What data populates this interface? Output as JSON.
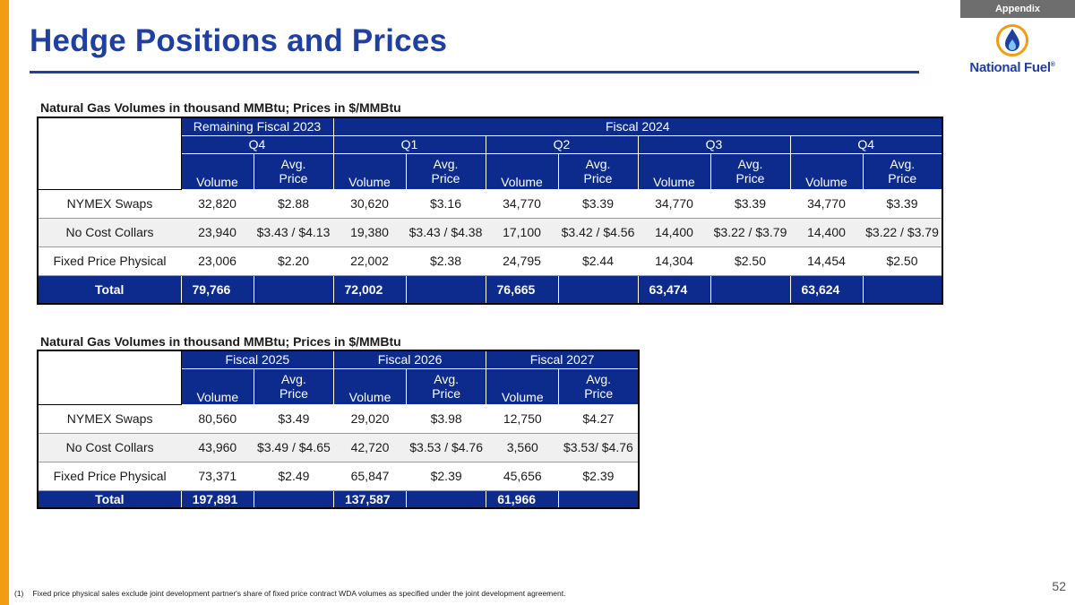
{
  "header": {
    "tag": "Appendix",
    "title": "Hedge Positions and Prices",
    "logo_text": "National Fuel",
    "logo_mark": "®"
  },
  "colors": {
    "navy": "#0d2b8c",
    "title_blue": "#1f3fa1",
    "orange": "#f39c12"
  },
  "table1": {
    "caption": "Natural Gas Volumes in thousand MMBtu; Prices in $/MMBtu",
    "groups": [
      "Remaining Fiscal 2023",
      "Fiscal 2024"
    ],
    "quarters": [
      "Q4",
      "Q1",
      "Q2",
      "Q3",
      "Q4"
    ],
    "col_volume": "Volume",
    "col_avg": "Avg.",
    "col_price": "Price",
    "rows": [
      {
        "label": "NYMEX Swaps",
        "cells": [
          "32,820",
          "$2.88",
          "30,620",
          "$3.16",
          "34,770",
          "$3.39",
          "34,770",
          "$3.39",
          "34,770",
          "$3.39"
        ]
      },
      {
        "label": "No Cost Collars",
        "cells": [
          "23,940",
          "$3.43 / $4.13",
          "19,380",
          "$3.43 / $4.38",
          "17,100",
          "$3.42 / $4.56",
          "14,400",
          "$3.22 / $3.79",
          "14,400",
          "$3.22 / $3.79"
        ]
      },
      {
        "label": "Fixed Price Physical",
        "cells": [
          "23,006",
          "$2.20",
          "22,002",
          "$2.38",
          "24,795",
          "$2.44",
          "14,304",
          "$2.50",
          "14,454",
          "$2.50"
        ]
      }
    ],
    "total": {
      "label": "Total",
      "cells": [
        "79,766",
        "",
        "72,002",
        "",
        "76,665",
        "",
        "63,474",
        "",
        "63,624",
        ""
      ]
    }
  },
  "table2": {
    "caption": "Natural Gas Volumes in thousand MMBtu; Prices in $/MMBtu",
    "groups": [
      "Fiscal 2025",
      "Fiscal 2026",
      "Fiscal 2027"
    ],
    "col_volume": "Volume",
    "col_avg": "Avg.",
    "col_price": "Price",
    "rows": [
      {
        "label": "NYMEX Swaps",
        "cells": [
          "80,560",
          "$3.49",
          "29,020",
          "$3.98",
          "12,750",
          "$4.27"
        ]
      },
      {
        "label": "No Cost Collars",
        "cells": [
          "43,960",
          "$3.49 / $4.65",
          "42,720",
          "$3.53 / $4.76",
          "3,560",
          "$3.53/ $4.76"
        ]
      },
      {
        "label": "Fixed Price Physical",
        "cells": [
          "73,371",
          "$2.49",
          "65,847",
          "$2.39",
          "45,656",
          "$2.39"
        ]
      }
    ],
    "total": {
      "label": "Total",
      "cells": [
        "197,891",
        "",
        "137,587",
        "",
        "61,966",
        ""
      ]
    }
  },
  "footnote": {
    "number": "(1)",
    "text": "Fixed price physical sales exclude joint development partner's share of fixed price contract WDA volumes as specified under the joint development agreement."
  },
  "page_number": "52"
}
